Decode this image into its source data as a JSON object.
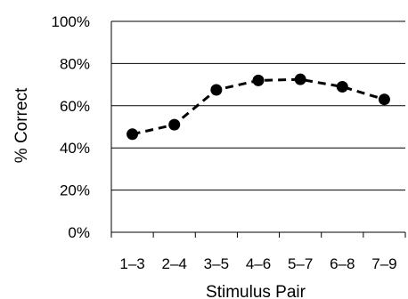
{
  "chart_data": {
    "type": "line",
    "title": "",
    "xlabel": "Stimulus Pair",
    "ylabel": "% Correct",
    "categories": [
      "1–3",
      "2–4",
      "3–5",
      "4–6",
      "5–7",
      "6–8",
      "7–9"
    ],
    "y_tick_labels": [
      "0%",
      "20%",
      "40%",
      "60%",
      "80%",
      "100%"
    ],
    "y_ticks": [
      0,
      20,
      40,
      60,
      80,
      100
    ],
    "ylim": [
      0,
      100
    ],
    "grid": "horizontal",
    "legend": "none",
    "series": [
      {
        "values": [
          46.5,
          51,
          67.5,
          72,
          72.5,
          69,
          63
        ],
        "line_style": "dashed",
        "marker": "circle",
        "color": "#000000"
      }
    ]
  }
}
